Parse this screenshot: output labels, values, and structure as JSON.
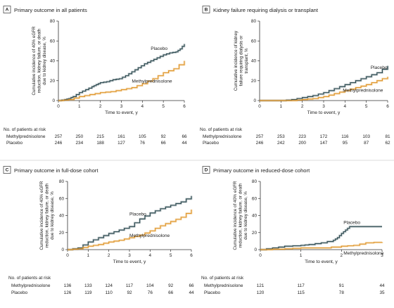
{
  "chart_data": [
    {
      "type": "line",
      "panel_letter": "A",
      "title": "Primary outcome in all patients",
      "ylabel_lines": [
        "Cumulative incidence of 40% eGFR",
        "reduction, kidney failure, or death",
        "due to kidney disease, %"
      ],
      "xlabel": "Time to event, y",
      "xlim": [
        0,
        6
      ],
      "ylim": [
        0,
        80
      ],
      "xticks": [
        "0",
        "1",
        "2",
        "3",
        "4",
        "5",
        "6"
      ],
      "yticks": [
        "0",
        "20",
        "40",
        "60",
        "80"
      ],
      "series": [
        {
          "name": "Placebo",
          "color": "#2c4a50",
          "x": [
            0,
            0.3,
            0.5,
            0.7,
            1.0,
            1.3,
            1.6,
            1.8,
            2.0,
            2.3,
            2.6,
            2.9,
            3.2,
            3.5,
            3.8,
            4.1,
            4.4,
            4.7,
            5.0,
            5.3,
            5.6,
            5.8,
            6.0
          ],
          "y": [
            0,
            1,
            2,
            4,
            8,
            11,
            14,
            16,
            18,
            19,
            21,
            22,
            25,
            29,
            33,
            37,
            40,
            43,
            46,
            48,
            49,
            52,
            57
          ]
        },
        {
          "name": "Methylprednisolone",
          "color": "#e0962a",
          "x": [
            0,
            0.5,
            1.0,
            1.5,
            2.0,
            2.5,
            3.0,
            3.5,
            4.0,
            4.5,
            5.0,
            5.5,
            6.0
          ],
          "y": [
            0,
            1,
            4,
            6,
            8,
            9,
            11,
            13,
            17,
            22,
            28,
            32,
            40
          ]
        }
      ],
      "risk_table": {
        "heading": "No. of patients at risk",
        "rows": [
          {
            "label": "Methylprednisolone",
            "values": [
              "257",
              "250",
              "215",
              "161",
              "105",
              "92",
              "66"
            ]
          },
          {
            "label": "Placebo",
            "values": [
              "246",
              "234",
              "188",
              "127",
              "76",
              "66",
              "44"
            ]
          }
        ]
      }
    },
    {
      "type": "line",
      "panel_letter": "B",
      "title": "Kidney failure requiring dialysis or transplant",
      "ylabel_lines": [
        "Cumulative incidence of kidney",
        "failure requiring dialysis or",
        "transplant, %"
      ],
      "xlabel": "Time to event, y",
      "xlim": [
        0,
        6
      ],
      "ylim": [
        0,
        80
      ],
      "xticks": [
        "0",
        "1",
        "2",
        "3",
        "4",
        "5",
        "6"
      ],
      "yticks": [
        "0",
        "20",
        "40",
        "60",
        "80"
      ],
      "series": [
        {
          "name": "Placebo",
          "color": "#2c4a50",
          "x": [
            0,
            1.0,
            1.5,
            2.0,
            2.5,
            3.0,
            3.5,
            4.0,
            4.5,
            5.0,
            5.5,
            6.0
          ],
          "y": [
            0,
            0,
            1,
            3,
            5,
            8,
            12,
            16,
            20,
            24,
            28,
            35
          ]
        },
        {
          "name": "Methylprednisolone",
          "color": "#e0962a",
          "x": [
            0,
            1.5,
            2.0,
            2.5,
            3.0,
            3.5,
            4.0,
            4.5,
            5.0,
            5.5,
            6.0
          ],
          "y": [
            0,
            0,
            1,
            2,
            4,
            7,
            10,
            13,
            16,
            20,
            24
          ]
        }
      ],
      "risk_table": {
        "heading": "No. of patients at risk",
        "rows": [
          {
            "label": "Methylprednisolone",
            "values": [
              "257",
              "253",
              "223",
              "172",
              "116",
              "103",
              "81"
            ]
          },
          {
            "label": "Placebo",
            "values": [
              "246",
              "242",
              "200",
              "147",
              "95",
              "87",
              "62"
            ]
          }
        ]
      }
    },
    {
      "type": "line",
      "panel_letter": "C",
      "title": "Primary outcome in full-dose cohort",
      "ylabel_lines": [
        "Cumulative incidence of 40% eGFR",
        "reduction, kidney failure, or death",
        "due to kidney disease, %"
      ],
      "xlabel": "Time to event, y",
      "xlim": [
        0,
        6
      ],
      "ylim": [
        0,
        80
      ],
      "xticks": [
        "0",
        "1",
        "2",
        "3",
        "4",
        "5",
        "6"
      ],
      "yticks": [
        "0",
        "20",
        "40",
        "60",
        "80"
      ],
      "series": [
        {
          "name": "Placebo",
          "color": "#2c4a50",
          "x": [
            0,
            0.5,
            1.0,
            1.5,
            2.0,
            2.5,
            3.0,
            3.5,
            4.0,
            4.5,
            5.0,
            5.5,
            6.0
          ],
          "y": [
            0,
            2,
            9,
            14,
            19,
            23,
            27,
            36,
            43,
            48,
            52,
            56,
            63
          ]
        },
        {
          "name": "Methylprednisolone",
          "color": "#e0962a",
          "x": [
            0,
            0.5,
            1.0,
            1.5,
            2.0,
            2.5,
            3.0,
            3.5,
            4.0,
            4.5,
            5.0,
            5.5,
            6.0
          ],
          "y": [
            0,
            1,
            4,
            6,
            9,
            11,
            14,
            17,
            22,
            28,
            33,
            38,
            47
          ]
        }
      ],
      "risk_table": {
        "heading": "No. of patients at risk",
        "rows": [
          {
            "label": "Methylprednisolone",
            "values": [
              "136",
              "133",
              "124",
              "117",
              "104",
              "92",
              "66"
            ]
          },
          {
            "label": "Placebo",
            "values": [
              "126",
              "119",
              "110",
              "92",
              "76",
              "66",
              "44"
            ]
          }
        ]
      }
    },
    {
      "type": "line",
      "panel_letter": "D",
      "title": "Primary outcome in reduced-dose cohort",
      "ylabel_lines": [
        "Cumulative incidence of 40% eGFR",
        "reduction, kidney failure, or death",
        "due to kidney disease, %"
      ],
      "xlabel": "Time to event, y",
      "xlim": [
        0,
        3
      ],
      "ylim": [
        0,
        80
      ],
      "xticks": [
        "0",
        "1",
        "2",
        "3"
      ],
      "yticks": [
        "0",
        "20",
        "40",
        "60",
        "80"
      ],
      "series": [
        {
          "name": "Placebo",
          "color": "#2c4a50",
          "x": [
            0,
            0.3,
            0.6,
            1.0,
            1.2,
            1.5,
            1.8,
            1.9,
            2.0,
            2.1,
            2.2,
            3.0
          ],
          "y": [
            0,
            2,
            4,
            5,
            6,
            8,
            11,
            14,
            19,
            23,
            27,
            27
          ]
        },
        {
          "name": "Methylprednisolone",
          "color": "#e0962a",
          "x": [
            0,
            0.6,
            1.0,
            1.5,
            2.0,
            2.3,
            2.6,
            3.0
          ],
          "y": [
            0,
            1,
            2,
            2,
            4,
            5,
            8,
            9
          ]
        }
      ],
      "risk_table": {
        "heading": "No. of patients at risk",
        "rows": [
          {
            "label": "Methylprednisolone",
            "values": [
              "121",
              "117",
              "91",
              "44"
            ]
          },
          {
            "label": "Placebo",
            "values": [
              "120",
              "115",
              "78",
              "35"
            ]
          }
        ]
      }
    }
  ]
}
